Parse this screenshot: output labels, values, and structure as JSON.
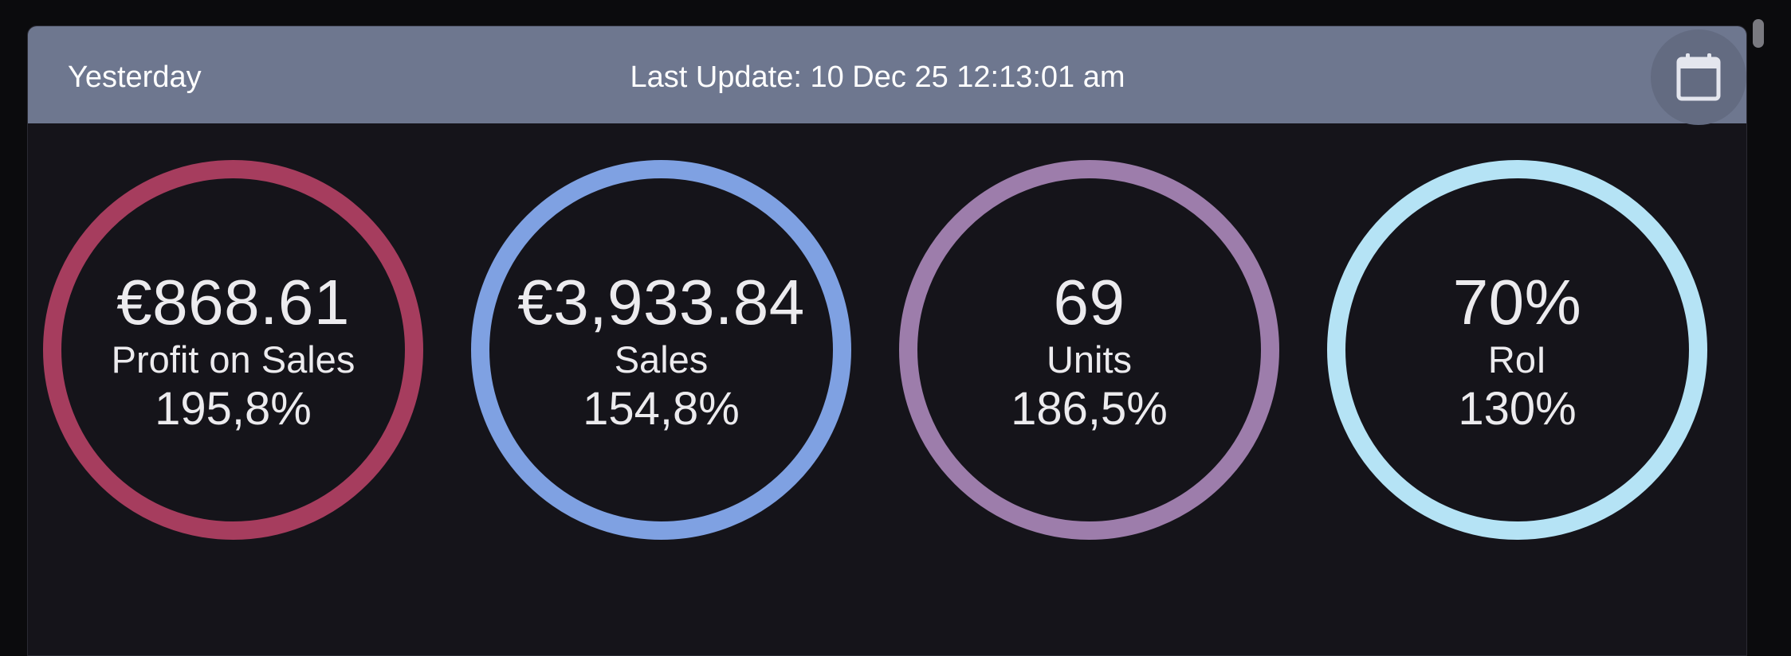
{
  "header": {
    "period": "Yesterday",
    "last_update": "Last Update: 10 Dec 25 12:13:01 am",
    "calendar_icon": "calendar-icon"
  },
  "colors": {
    "header_bg": "#6e778f",
    "panel_bg": "#15141a",
    "profit": "#a63d5e",
    "sales": "#7fa1e2",
    "units": "#9d7dab",
    "roi": "#b5e3f5"
  },
  "metrics": [
    {
      "value": "€868.61",
      "label": "Profit on Sales",
      "change": "195,8%"
    },
    {
      "value": "€3,933.84",
      "label": "Sales",
      "change": "154,8%"
    },
    {
      "value": "69",
      "label": "Units",
      "change": "186,5%"
    },
    {
      "value": "70%",
      "label": "RoI",
      "change": "130%"
    }
  ]
}
